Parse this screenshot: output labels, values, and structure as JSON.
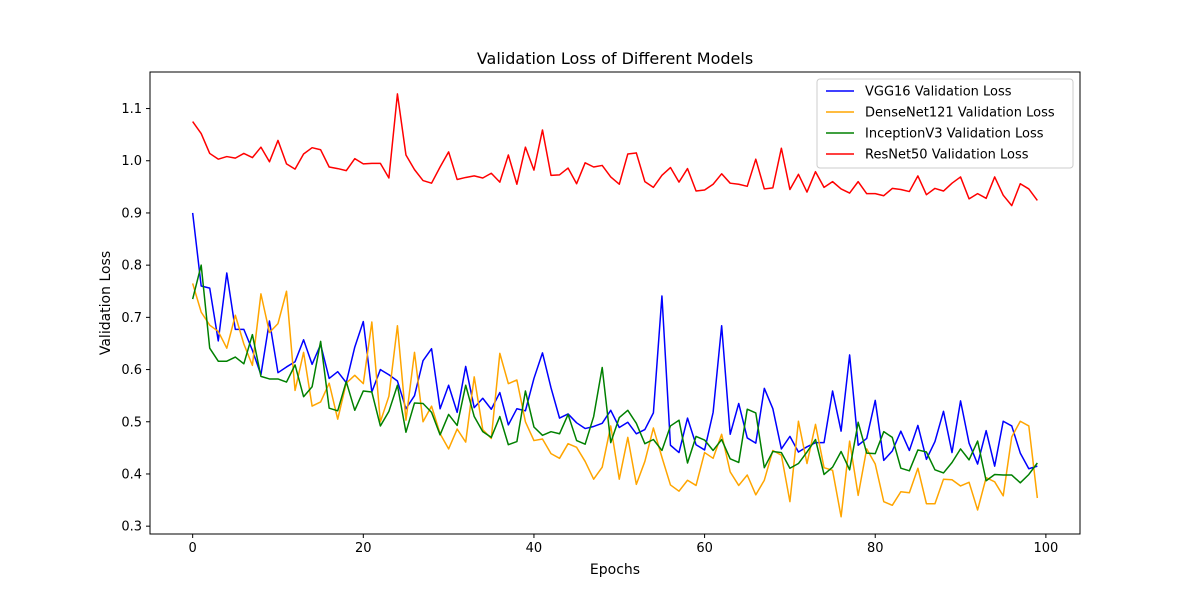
{
  "chart_data": {
    "type": "line",
    "title": "Validation Loss of Different Models",
    "xlabel": "Epochs",
    "ylabel": "Validation Loss",
    "xlim": [
      -5,
      104
    ],
    "ylim": [
      0.285,
      1.17
    ],
    "xticks": [
      0,
      20,
      40,
      60,
      80,
      100
    ],
    "yticks": [
      0.3,
      0.4,
      0.5,
      0.6,
      0.7,
      0.8,
      0.9,
      1.0,
      1.1
    ],
    "ytick_labels": [
      "0.3",
      "0.4",
      "0.5",
      "0.6",
      "0.7",
      "0.8",
      "0.9",
      "1.0",
      "1.1"
    ],
    "legend_position": "upper right",
    "grid": false,
    "series": [
      {
        "name": "VGG16 Validation Loss",
        "color": "#0000ff",
        "values": [
          0.9,
          0.76,
          0.756,
          0.655,
          0.785,
          0.677,
          0.677,
          0.637,
          0.59,
          0.693,
          0.594,
          0.605,
          0.615,
          0.657,
          0.61,
          0.648,
          0.583,
          0.596,
          0.575,
          0.643,
          0.692,
          0.557,
          0.6,
          0.59,
          0.578,
          0.525,
          0.55,
          0.617,
          0.64,
          0.525,
          0.57,
          0.518,
          0.606,
          0.527,
          0.545,
          0.524,
          0.556,
          0.494,
          0.525,
          0.521,
          0.583,
          0.632,
          0.565,
          0.507,
          0.515,
          0.498,
          0.487,
          0.491,
          0.497,
          0.522,
          0.489,
          0.499,
          0.477,
          0.485,
          0.517,
          0.741,
          0.455,
          0.441,
          0.507,
          0.456,
          0.446,
          0.518,
          0.684,
          0.476,
          0.535,
          0.469,
          0.459,
          0.564,
          0.525,
          0.448,
          0.472,
          0.442,
          0.452,
          0.46,
          0.46,
          0.559,
          0.482,
          0.628,
          0.455,
          0.468,
          0.541,
          0.426,
          0.444,
          0.482,
          0.445,
          0.493,
          0.428,
          0.462,
          0.52,
          0.441,
          0.54,
          0.459,
          0.419,
          0.483,
          0.415,
          0.501,
          0.492,
          0.44,
          0.41,
          0.415
        ]
      },
      {
        "name": "DenseNet121 Validation Loss",
        "color": "#ffa500",
        "values": [
          0.765,
          0.71,
          0.685,
          0.673,
          0.641,
          0.704,
          0.649,
          0.608,
          0.745,
          0.671,
          0.688,
          0.75,
          0.56,
          0.633,
          0.53,
          0.538,
          0.574,
          0.505,
          0.574,
          0.589,
          0.573,
          0.691,
          0.5,
          0.549,
          0.684,
          0.503,
          0.633,
          0.5,
          0.53,
          0.477,
          0.448,
          0.486,
          0.461,
          0.586,
          0.485,
          0.468,
          0.631,
          0.573,
          0.58,
          0.5,
          0.464,
          0.467,
          0.439,
          0.43,
          0.458,
          0.451,
          0.424,
          0.39,
          0.413,
          0.492,
          0.39,
          0.47,
          0.38,
          0.424,
          0.488,
          0.432,
          0.379,
          0.367,
          0.388,
          0.378,
          0.441,
          0.43,
          0.476,
          0.404,
          0.378,
          0.398,
          0.36,
          0.388,
          0.445,
          0.436,
          0.347,
          0.501,
          0.42,
          0.495,
          0.412,
          0.407,
          0.318,
          0.463,
          0.359,
          0.448,
          0.419,
          0.347,
          0.34,
          0.366,
          0.364,
          0.411,
          0.343,
          0.343,
          0.39,
          0.389,
          0.377,
          0.384,
          0.331,
          0.393,
          0.385,
          0.358,
          0.471,
          0.501,
          0.492,
          0.354
        ]
      },
      {
        "name": "InceptionV3 Validation Loss",
        "color": "#008000",
        "values": [
          0.735,
          0.8,
          0.641,
          0.616,
          0.616,
          0.624,
          0.611,
          0.667,
          0.587,
          0.582,
          0.582,
          0.576,
          0.609,
          0.548,
          0.567,
          0.654,
          0.526,
          0.521,
          0.577,
          0.522,
          0.559,
          0.557,
          0.492,
          0.52,
          0.57,
          0.48,
          0.536,
          0.535,
          0.518,
          0.475,
          0.514,
          0.493,
          0.57,
          0.51,
          0.481,
          0.47,
          0.51,
          0.456,
          0.462,
          0.559,
          0.49,
          0.474,
          0.481,
          0.477,
          0.514,
          0.464,
          0.457,
          0.51,
          0.604,
          0.46,
          0.508,
          0.522,
          0.497,
          0.458,
          0.466,
          0.445,
          0.492,
          0.503,
          0.421,
          0.472,
          0.465,
          0.445,
          0.466,
          0.429,
          0.422,
          0.524,
          0.517,
          0.412,
          0.443,
          0.441,
          0.411,
          0.42,
          0.442,
          0.466,
          0.399,
          0.413,
          0.443,
          0.408,
          0.499,
          0.44,
          0.439,
          0.481,
          0.47,
          0.411,
          0.406,
          0.446,
          0.442,
          0.408,
          0.402,
          0.422,
          0.448,
          0.427,
          0.463,
          0.387,
          0.399,
          0.398,
          0.398,
          0.383,
          0.399,
          0.421
        ]
      },
      {
        "name": "ResNet50 Validation Loss",
        "color": "#ff0000",
        "values": [
          1.075,
          1.052,
          1.014,
          1.003,
          1.008,
          1.005,
          1.014,
          1.006,
          1.026,
          0.998,
          1.039,
          0.994,
          0.984,
          1.013,
          1.025,
          1.021,
          0.988,
          0.985,
          0.981,
          1.004,
          0.994,
          0.995,
          0.995,
          0.967,
          1.128,
          1.011,
          0.983,
          0.962,
          0.957,
          0.988,
          1.017,
          0.964,
          0.968,
          0.971,
          0.967,
          0.976,
          0.959,
          1.011,
          0.955,
          1.026,
          0.982,
          1.059,
          0.972,
          0.973,
          0.986,
          0.956,
          0.996,
          0.988,
          0.991,
          0.969,
          0.955,
          1.013,
          1.015,
          0.96,
          0.949,
          0.972,
          0.987,
          0.959,
          0.985,
          0.942,
          0.944,
          0.955,
          0.975,
          0.957,
          0.955,
          0.951,
          1.003,
          0.946,
          0.948,
          1.024,
          0.945,
          0.974,
          0.94,
          0.979,
          0.949,
          0.96,
          0.946,
          0.938,
          0.96,
          0.937,
          0.937,
          0.933,
          0.947,
          0.945,
          0.941,
          0.971,
          0.935,
          0.947,
          0.942,
          0.957,
          0.969,
          0.927,
          0.937,
          0.928,
          0.969,
          0.934,
          0.914,
          0.956,
          0.946,
          0.924
        ]
      }
    ]
  }
}
